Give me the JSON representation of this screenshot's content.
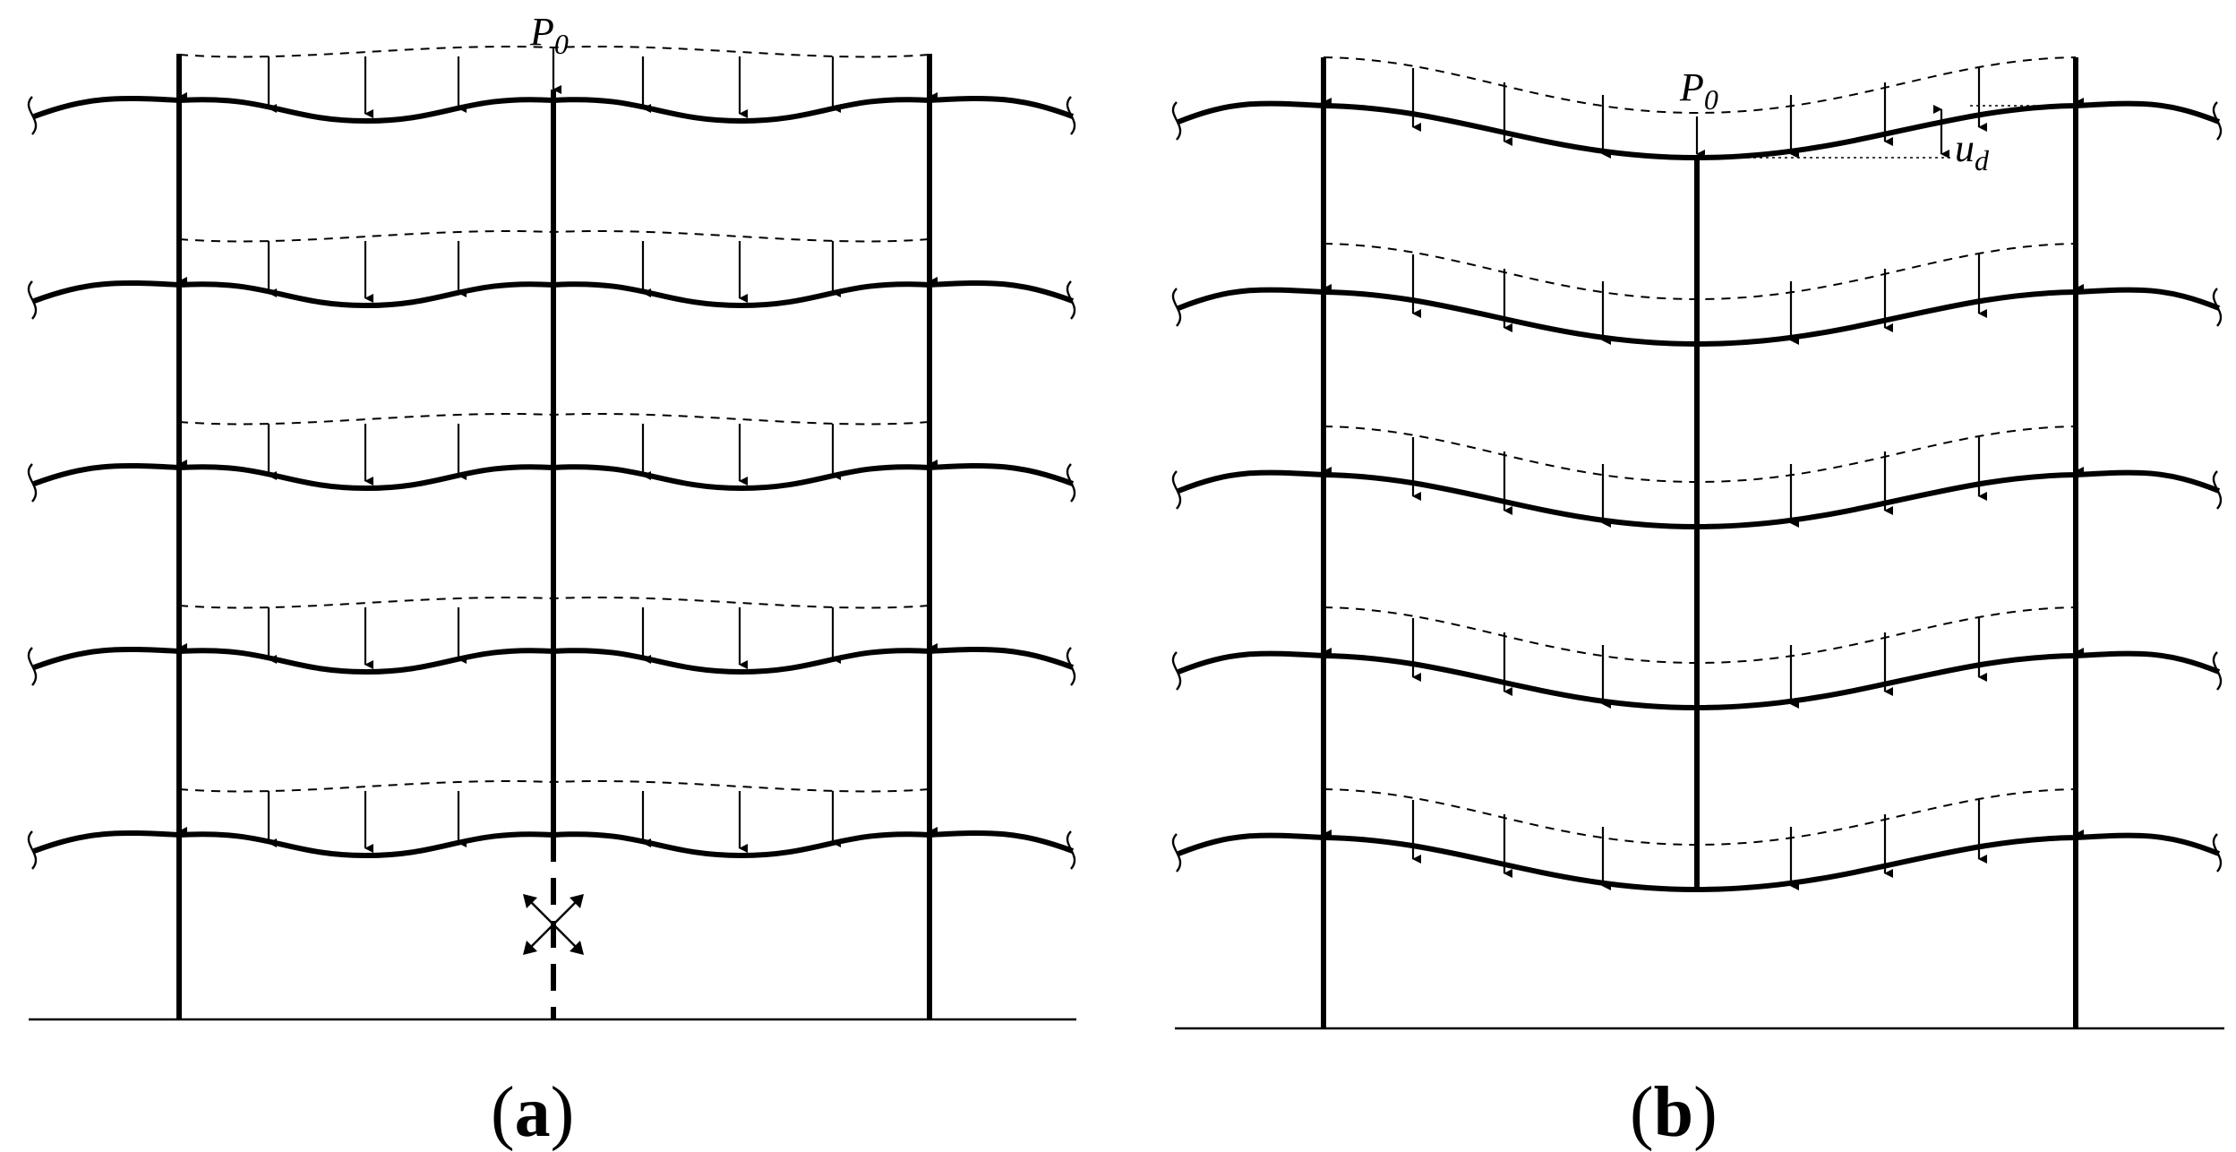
{
  "panels": [
    {
      "id": "a",
      "caption": "(a)",
      "caption_letter": "a",
      "load_symbol": "P",
      "load_subscript": "0",
      "state": "column removed (dashed) – beams undeflected at removed column",
      "floors": 5
    },
    {
      "id": "b",
      "caption": "(b)",
      "caption_letter": "b",
      "load_symbol": "P",
      "load_subscript": "0",
      "displacement_symbol": "u",
      "displacement_subscript": "d",
      "floors": 5
    }
  ],
  "colors": {
    "line": "#000000",
    "background": "#ffffff"
  },
  "icons": {
    "removed_column_marker": "cross-arrows-icon",
    "break_marker": "wavy-break-icon"
  }
}
